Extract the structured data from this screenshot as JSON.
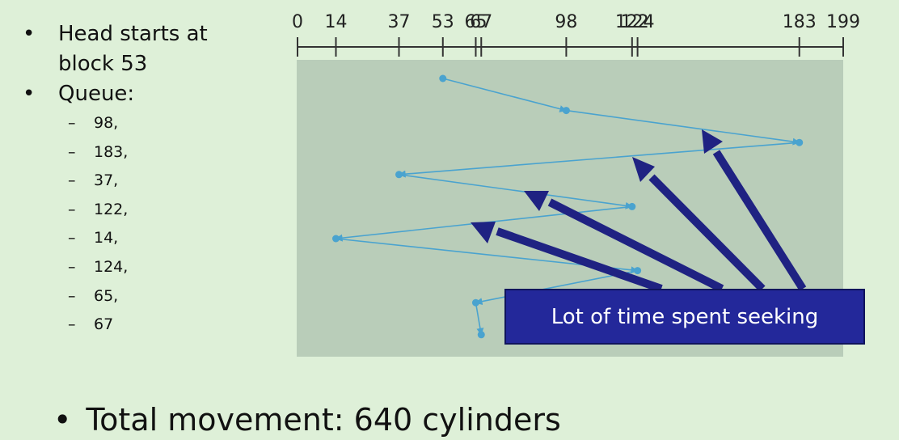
{
  "bullets": {
    "head_start": "Head starts at block 53",
    "queue_label": "Queue:",
    "queue": [
      "98,",
      "183,",
      "37,",
      "122,",
      "14,",
      "124,",
      "65,",
      "67"
    ]
  },
  "axis": {
    "min": 0,
    "max": 199,
    "ticks": [
      {
        "value": 0,
        "label": "0"
      },
      {
        "value": 14,
        "label": "14"
      },
      {
        "value": 37,
        "label": "37"
      },
      {
        "value": 53,
        "label": "53"
      },
      {
        "value": 65,
        "label": "65"
      },
      {
        "value": 67,
        "label": "67"
      },
      {
        "value": 98,
        "label": "98"
      },
      {
        "value": 122,
        "label": "122"
      },
      {
        "value": 124,
        "label": "124"
      },
      {
        "value": 183,
        "label": "183"
      },
      {
        "value": 199,
        "label": "199"
      }
    ]
  },
  "path": [
    53,
    98,
    183,
    37,
    122,
    14,
    124,
    65,
    67
  ],
  "callout": "Lot of time spent seeking",
  "total": "Total movement: 640 cylinders",
  "colors": {
    "background": "#def0d8",
    "plot_area": "#b9cdb9",
    "seek_line": "#4aa3cf",
    "arrow": "#1f2282",
    "callout_bg": "#23289a"
  }
}
